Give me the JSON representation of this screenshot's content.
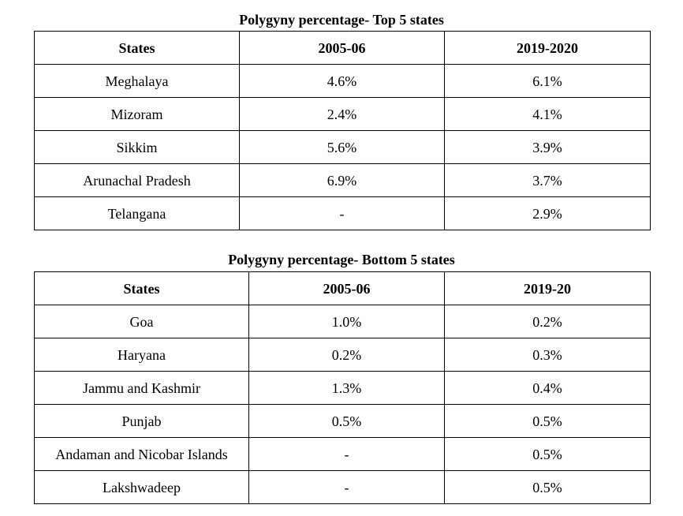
{
  "top_table": {
    "caption": "Polygyny percentage- Top 5 states",
    "headers": [
      "States",
      "2005-06",
      "2019-2020"
    ],
    "rows": [
      [
        "Meghalaya",
        "4.6%",
        "6.1%"
      ],
      [
        "Mizoram",
        "2.4%",
        "4.1%"
      ],
      [
        "Sikkim",
        "5.6%",
        "3.9%"
      ],
      [
        "Arunachal Pradesh",
        "6.9%",
        "3.7%"
      ],
      [
        "Telangana",
        "-",
        "2.9%"
      ]
    ]
  },
  "bottom_table": {
    "caption": "Polygyny percentage- Bottom 5 states",
    "headers": [
      "States",
      "2005-06",
      "2019-20"
    ],
    "rows": [
      [
        "Goa",
        "1.0%",
        "0.2%"
      ],
      [
        "Haryana",
        "0.2%",
        "0.3%"
      ],
      [
        "Jammu and Kashmir",
        "1.3%",
        "0.4%"
      ],
      [
        "Punjab",
        "0.5%",
        "0.5%"
      ],
      [
        "Andaman and Nicobar Islands",
        "-",
        "0.5%"
      ],
      [
        "Lakshwadeep",
        "-",
        "0.5%"
      ]
    ]
  }
}
